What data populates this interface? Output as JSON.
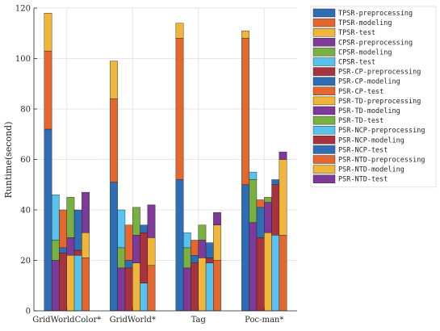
{
  "chart_data": {
    "type": "bar",
    "stacked": true,
    "grouped": true,
    "ylabel": "Runtime(second)",
    "xlabel": "",
    "ylim": [
      0,
      120
    ],
    "yticks": [
      0,
      20,
      40,
      60,
      80,
      100,
      120
    ],
    "grid": true,
    "legend_position": "right",
    "categories": [
      "GridWorldColor*",
      "GridWorld*",
      "Tag",
      "Poc-man*"
    ],
    "methods": [
      "TPSR",
      "CPSR",
      "PSR-CP",
      "PSR-TD",
      "PSR-NCP",
      "PSR-NTD"
    ],
    "colors": [
      "#2f6db5",
      "#e3672e",
      "#f0b63c",
      "#7e3a98",
      "#79b043",
      "#58c2ee",
      "#a6333d"
    ],
    "legend": [
      {
        "label": "TPSR-preprocessing",
        "color": "#2f6db5"
      },
      {
        "label": "TPSR-modeling",
        "color": "#e3672e"
      },
      {
        "label": "TPSR-test",
        "color": "#f0b63c"
      },
      {
        "label": "CPSR-preprocessing",
        "color": "#7e3a98"
      },
      {
        "label": "CPSR-modeling",
        "color": "#79b043"
      },
      {
        "label": "CPSR-test",
        "color": "#58c2ee"
      },
      {
        "label": "PSR-CP-preprocessing",
        "color": "#a6333d"
      },
      {
        "label": "PSR-CP-modeling",
        "color": "#2f6db5"
      },
      {
        "label": "PSR-CP-test",
        "color": "#e3672e"
      },
      {
        "label": "PSR-TD-preprocessing",
        "color": "#f0b63c"
      },
      {
        "label": "PSR-TD-modeling",
        "color": "#7e3a98"
      },
      {
        "label": "PSR-TD-test",
        "color": "#79b043"
      },
      {
        "label": "PSR-NCP-preprocessing",
        "color": "#58c2ee"
      },
      {
        "label": "PSR-NCP-modeling",
        "color": "#a6333d"
      },
      {
        "label": "PSR-NCP-test",
        "color": "#2f6db5"
      },
      {
        "label": "PSR-NTD-preprocessing",
        "color": "#e3672e"
      },
      {
        "label": "PSR-NTD-modeling",
        "color": "#f0b63c"
      },
      {
        "label": "PSR-NTD-test",
        "color": "#7e3a98"
      }
    ],
    "series": [
      {
        "category": "GridWorldColor*",
        "bars": [
          {
            "method": "TPSR",
            "segments": [
              72,
              31,
              15
            ]
          },
          {
            "method": "CPSR",
            "segments": [
              20,
              8,
              18
            ]
          },
          {
            "method": "PSR-CP",
            "segments": [
              23,
              2,
              15
            ]
          },
          {
            "method": "PSR-TD",
            "segments": [
              22,
              7,
              16
            ]
          },
          {
            "method": "PSR-NCP",
            "segments": [
              22,
              2,
              16
            ]
          },
          {
            "method": "PSR-NTD",
            "segments": [
              21,
              10,
              16
            ]
          }
        ]
      },
      {
        "category": "GridWorld*",
        "bars": [
          {
            "method": "TPSR",
            "segments": [
              51,
              33,
              15
            ]
          },
          {
            "method": "CPSR",
            "segments": [
              17,
              8,
              15
            ]
          },
          {
            "method": "PSR-CP",
            "segments": [
              17,
              3,
              14
            ]
          },
          {
            "method": "PSR-TD",
            "segments": [
              19,
              11,
              11
            ]
          },
          {
            "method": "PSR-NCP",
            "segments": [
              11,
              20,
              3
            ]
          },
          {
            "method": "PSR-NTD",
            "segments": [
              18,
              11,
              13
            ]
          }
        ]
      },
      {
        "category": "Tag",
        "bars": [
          {
            "method": "TPSR",
            "segments": [
              52,
              56,
              6
            ]
          },
          {
            "method": "CPSR",
            "segments": [
              17,
              8,
              6
            ]
          },
          {
            "method": "PSR-CP",
            "segments": [
              19,
              3,
              6
            ]
          },
          {
            "method": "PSR-TD",
            "segments": [
              21,
              7,
              6
            ]
          },
          {
            "method": "PSR-NCP",
            "segments": [
              19,
              2,
              6
            ]
          },
          {
            "method": "PSR-NTD",
            "segments": [
              20,
              14,
              5
            ]
          }
        ]
      },
      {
        "category": "Poc-man*",
        "bars": [
          {
            "method": "TPSR",
            "segments": [
              50,
              58,
              3
            ]
          },
          {
            "method": "CPSR",
            "segments": [
              35,
              17,
              3
            ]
          },
          {
            "method": "PSR-CP",
            "segments": [
              29,
              12,
              3
            ]
          },
          {
            "method": "PSR-TD",
            "segments": [
              31,
              12,
              2
            ]
          },
          {
            "method": "PSR-NCP",
            "segments": [
              30,
              20,
              2
            ]
          },
          {
            "method": "PSR-NTD",
            "segments": [
              30,
              30,
              3
            ]
          }
        ]
      }
    ]
  }
}
